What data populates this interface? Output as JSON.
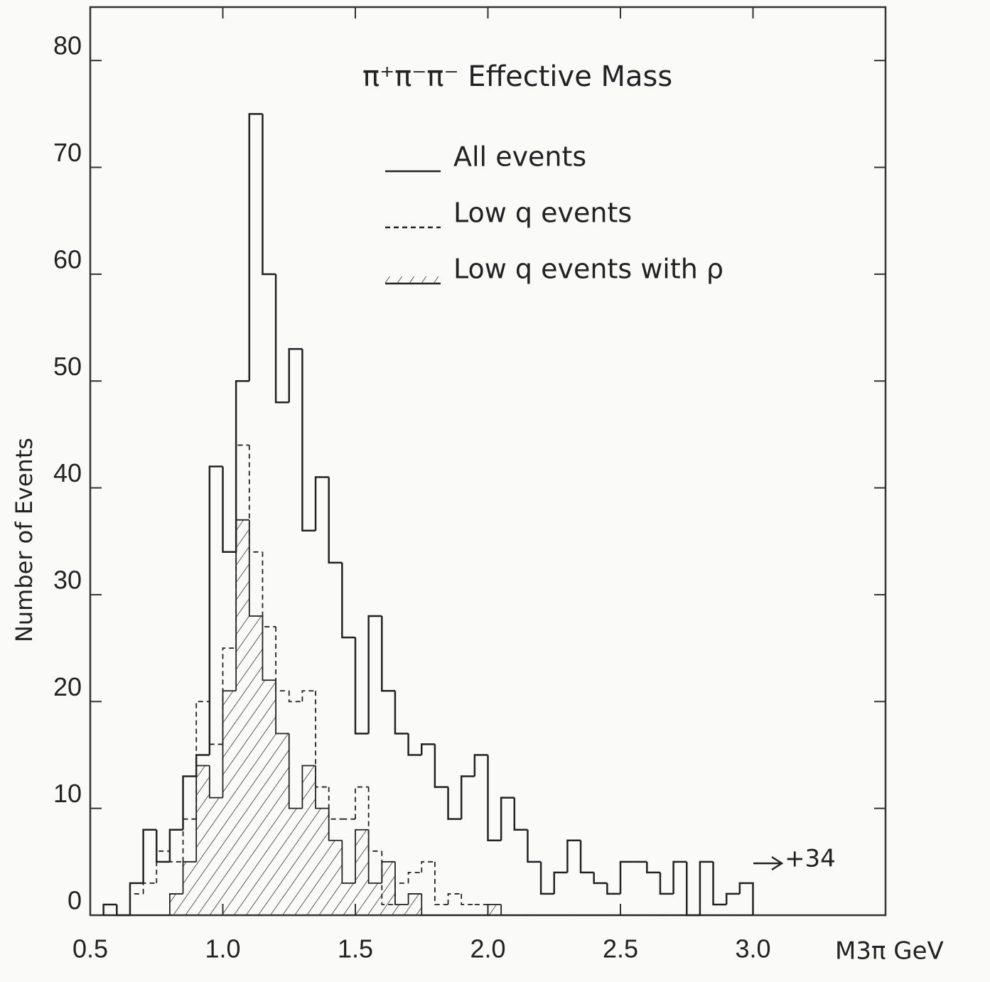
{
  "chart_data": {
    "type": "histogram",
    "title": "π⁺π⁻π⁻ Effective Mass",
    "x_label": "M3π GeV",
    "y_label": "Number of Events",
    "bins": [
      0.55,
      0.6,
      0.65,
      0.7,
      0.75,
      0.8,
      0.85,
      0.9,
      0.95,
      1.0,
      1.05,
      1.1,
      1.15,
      1.2,
      1.25,
      1.3,
      1.35,
      1.4,
      1.45,
      1.5,
      1.55,
      1.6,
      1.65,
      1.7,
      1.75,
      1.8,
      1.85,
      1.9,
      1.95,
      2.0,
      2.05,
      2.1,
      2.15,
      2.2,
      2.25,
      2.3,
      2.35,
      2.4,
      2.45,
      2.5,
      2.55,
      2.6,
      2.65,
      2.7,
      2.75,
      2.8,
      2.85,
      2.9,
      2.95,
      3.0
    ],
    "series": [
      {
        "name": "All events",
        "color": "#222222",
        "style": "solid",
        "values": [
          1,
          0,
          3,
          8,
          5,
          8,
          13,
          15,
          42,
          34,
          50,
          75,
          60,
          48,
          53,
          36,
          41,
          33,
          26,
          17,
          28,
          21,
          17,
          15,
          16,
          12,
          9,
          13,
          15,
          7,
          11,
          8,
          5,
          2,
          4,
          7,
          4,
          3,
          2,
          5,
          5,
          4,
          2,
          5,
          0,
          5,
          1,
          2,
          3
        ]
      },
      {
        "name": "Low q events",
        "color": "#222222",
        "style": "dashed",
        "values": [
          0,
          0,
          2,
          3,
          6,
          5,
          9,
          20,
          16,
          25,
          44,
          34,
          27,
          21,
          20,
          21,
          12,
          9,
          9,
          12,
          6,
          1,
          3,
          4,
          5,
          1,
          2,
          1,
          1,
          0,
          0,
          0,
          0,
          0,
          0,
          0,
          0,
          0,
          0,
          0,
          0,
          0,
          0,
          0,
          0,
          0,
          0,
          0,
          0
        ]
      },
      {
        "name": "Low q events with ρ",
        "color": "#222222",
        "style": "hatched",
        "values": [
          0,
          0,
          0,
          0,
          0,
          2,
          5,
          14,
          11,
          21,
          37,
          28,
          22,
          17,
          10,
          14,
          10,
          7,
          3,
          8,
          3,
          5,
          1,
          2,
          0,
          0,
          0,
          0,
          0,
          1,
          0,
          0,
          0,
          0,
          0,
          0,
          0,
          0,
          0,
          0,
          0,
          0,
          0,
          0,
          0,
          0,
          0,
          0,
          0
        ]
      }
    ],
    "annotation": "+34",
    "xlim": [
      0.5,
      3.5
    ],
    "xticks": [
      0.5,
      {
        "value": 1,
        "label": "1.0"
      },
      1.5,
      {
        "value": 2,
        "label": "2.0"
      },
      2.5,
      {
        "value": 3,
        "label": "3.0"
      }
    ],
    "ylim": [
      0,
      85
    ],
    "yticks": [
      0,
      10,
      20,
      30,
      40,
      50,
      60,
      70,
      80
    ]
  }
}
